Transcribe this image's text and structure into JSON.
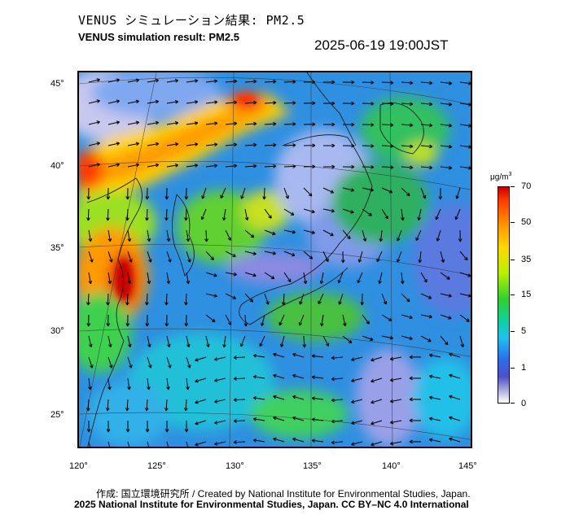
{
  "header": {
    "title_jp": "VENUS シミュレーション結果: PM2.5",
    "title_en": "VENUS simulation result: PM2.5",
    "timestamp": "2025-06-19 19:00JST"
  },
  "map": {
    "lat_labels": [
      "45°",
      "40°",
      "35°",
      "30°",
      "25°"
    ],
    "lon_labels": [
      "120°",
      "125°",
      "130°",
      "135°",
      "140°",
      "145°"
    ],
    "overlay": "wind-vector-arrows"
  },
  "colorbar": {
    "unit": "μg/m",
    "unit_sup": "3",
    "ticks": [
      "70",
      "50",
      "35",
      "15",
      "5",
      "1",
      "0"
    ],
    "colors": [
      "#c80000",
      "#ff3a00",
      "#ff9a00",
      "#ffd800",
      "#b8f000",
      "#30d030",
      "#10d0a0",
      "#20c0f0",
      "#2a6ee8",
      "#5050c8",
      "#a8a8dc",
      "#ffffff"
    ]
  },
  "footer": {
    "credit_jp": "作成: 国立環境研究所 / Created by National Institute for Environmental Studies, Japan.",
    "credit_en": "2025 National Institute for Environmental Studies, Japan. CC BY–NC 4.0 International"
  }
}
